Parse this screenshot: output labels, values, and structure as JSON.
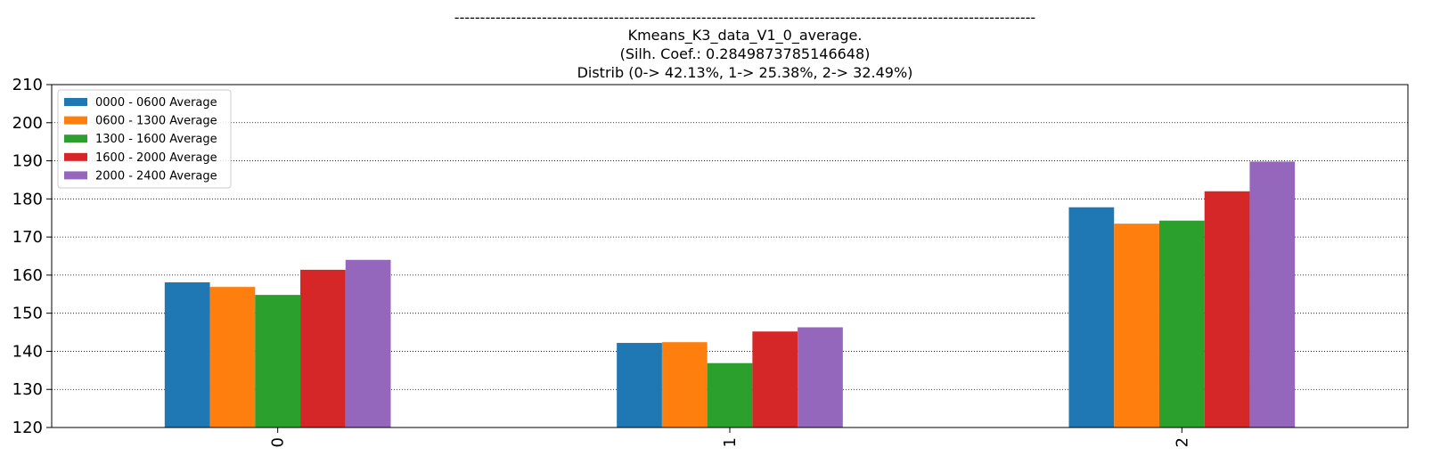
{
  "chart_data": {
    "type": "bar",
    "title_lines": [
      "-----------------------------------------------------------------------------------------------------------------",
      "Kmeans_K3_data_V1_0_average.",
      "(Silh. Coef.: 0.2849873785146648)",
      "Distrib (0-> 42.13%, 1-> 25.38%, 2-> 32.49%)"
    ],
    "categories": [
      "0",
      "1",
      "2"
    ],
    "series": [
      {
        "name": "0000 - 0600 Average",
        "color": "#1f77b4",
        "values": [
          158.1,
          142.2,
          177.8
        ]
      },
      {
        "name": "0600 - 1300 Average",
        "color": "#ff7f0e",
        "values": [
          156.9,
          142.4,
          173.5
        ]
      },
      {
        "name": "1300 - 1600 Average",
        "color": "#2ca02c",
        "values": [
          154.8,
          136.9,
          174.3
        ]
      },
      {
        "name": "1600 - 2000 Average",
        "color": "#d62728",
        "values": [
          161.4,
          145.2,
          182.0
        ]
      },
      {
        "name": "2000 - 2400 Average",
        "color": "#9467bd",
        "values": [
          164.0,
          146.3,
          189.8
        ]
      }
    ],
    "ylim": [
      120,
      210
    ],
    "yticks": [
      120,
      130,
      140,
      150,
      160,
      170,
      180,
      190,
      200,
      210
    ],
    "grid": "y-dotted",
    "legend_position": "upper-left",
    "xlabel": "",
    "ylabel": ""
  }
}
